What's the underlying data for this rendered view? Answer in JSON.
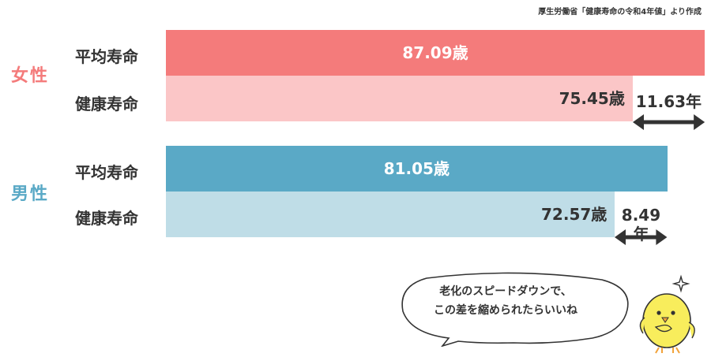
{
  "source_note": "厚生労働省「健康寿命の令和4年値」より作成",
  "colors": {
    "female_dark": "#f47b7b",
    "female_light": "#fbc6c7",
    "male_dark": "#5aa9c6",
    "male_light": "#bfdde7",
    "arrow": "#333333",
    "chick": "#f8ed5c"
  },
  "bubble": {
    "line1": "老化のスピードダウンで、",
    "line2": "この差を縮められたらいいね"
  },
  "chart_data": {
    "type": "bar",
    "orientation": "horizontal",
    "unit": "歳",
    "gap_unit": "年",
    "groups": [
      {
        "name": "女性",
        "bars": [
          {
            "label": "平均寿命",
            "value": 87.09,
            "display": "87.09歳"
          },
          {
            "label": "健康寿命",
            "value": 75.45,
            "display": "75.45歳"
          }
        ],
        "gap": 11.63,
        "gap_display": "11.63年"
      },
      {
        "name": "男性",
        "bars": [
          {
            "label": "平均寿命",
            "value": 81.05,
            "display": "81.05歳"
          },
          {
            "label": "健康寿命",
            "value": 72.57,
            "display": "72.57歳"
          }
        ],
        "gap": 8.49,
        "gap_display": "8.49年"
      }
    ]
  }
}
